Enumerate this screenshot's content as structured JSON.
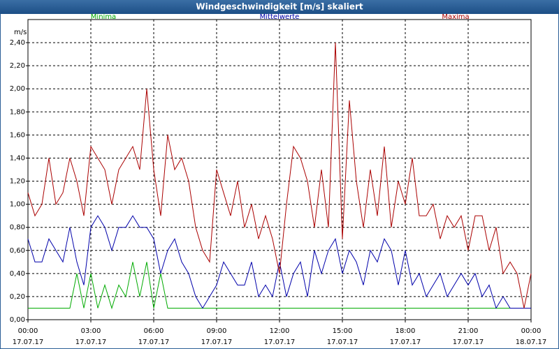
{
  "chart_data": {
    "type": "line",
    "title": "Windgeschwindigkeit [m/s] skaliert",
    "y_unit": "m/s",
    "x": [
      0,
      20,
      40,
      60,
      80,
      100,
      120,
      140,
      160,
      180,
      200,
      220,
      240,
      260,
      280,
      300,
      320,
      340,
      360,
      380,
      400,
      420,
      440,
      460,
      480,
      500,
      520,
      540,
      560,
      580,
      600,
      620,
      640,
      660,
      680,
      700,
      720,
      740,
      760,
      780,
      800,
      820,
      840,
      860,
      880,
      900,
      920,
      940,
      960,
      980,
      1000,
      1020,
      1040,
      1060,
      1080,
      1100,
      1120,
      1140,
      1160,
      1180,
      1200,
      1220,
      1240,
      1260,
      1280,
      1300,
      1320,
      1340,
      1360,
      1380,
      1400,
      1420,
      1440
    ],
    "xlim": [
      0,
      1440
    ],
    "xticks": [
      {
        "value": 0,
        "label": "00:00",
        "date": "17.07.17"
      },
      {
        "value": 180,
        "label": "03:00",
        "date": "17.07.17"
      },
      {
        "value": 360,
        "label": "06:00",
        "date": "17.07.17"
      },
      {
        "value": 540,
        "label": "09:00",
        "date": "17.07.17"
      },
      {
        "value": 720,
        "label": "12:00",
        "date": "17.07.17"
      },
      {
        "value": 900,
        "label": "15:00",
        "date": "17.07.17"
      },
      {
        "value": 1080,
        "label": "18:00",
        "date": "17.07.17"
      },
      {
        "value": 1260,
        "label": "21:00",
        "date": "17.07.17"
      },
      {
        "value": 1440,
        "label": "00:00",
        "date": "18.07.17"
      }
    ],
    "ylim": [
      0,
      2.6
    ],
    "yticks": [
      {
        "value": 0,
        "label": "0,00"
      },
      {
        "value": 0.2,
        "label": "0,20"
      },
      {
        "value": 0.4,
        "label": "0,40"
      },
      {
        "value": 0.6,
        "label": "0,60"
      },
      {
        "value": 0.8,
        "label": "0,80"
      },
      {
        "value": 1.0,
        "label": "1,00"
      },
      {
        "value": 1.2,
        "label": "1,20"
      },
      {
        "value": 1.4,
        "label": "1,40"
      },
      {
        "value": 1.6,
        "label": "1,60"
      },
      {
        "value": 1.8,
        "label": "1,80"
      },
      {
        "value": 2.0,
        "label": "2,00"
      },
      {
        "value": 2.2,
        "label": "2,20"
      },
      {
        "value": 2.4,
        "label": "2,40"
      }
    ],
    "grid": true,
    "series": [
      {
        "name": "Minima",
        "color": "#00aa00",
        "values": [
          0.1,
          0.1,
          0.1,
          0.1,
          0.1,
          0.1,
          0.1,
          0.4,
          0.1,
          0.4,
          0.1,
          0.3,
          0.1,
          0.3,
          0.2,
          0.5,
          0.2,
          0.5,
          0.1,
          0.4,
          0.1,
          0.1,
          0.1,
          0.1,
          0.1,
          0.1,
          0.1,
          0.1,
          0.1,
          0.1,
          0.1,
          0.1,
          0.1,
          0.1,
          0.1,
          0.1,
          0.1,
          0.1,
          0.1,
          0.1,
          0.1,
          0.1,
          0.1,
          0.1,
          0.1,
          0.1,
          0.1,
          0.1,
          0.1,
          0.1,
          0.1,
          0.1,
          0.1,
          0.1,
          0.1,
          0.1,
          0.1,
          0.1,
          0.1,
          0.1,
          0.1,
          0.1,
          0.1,
          0.1,
          0.1,
          0.1,
          0.1,
          0.1,
          0.1,
          0.1,
          0.1,
          0.1,
          0.1
        ]
      },
      {
        "name": "Mittelwerte",
        "color": "#0000aa",
        "values": [
          0.7,
          0.5,
          0.5,
          0.7,
          0.6,
          0.5,
          0.8,
          0.5,
          0.3,
          0.8,
          0.9,
          0.8,
          0.6,
          0.8,
          0.8,
          0.9,
          0.8,
          0.8,
          0.7,
          0.4,
          0.6,
          0.7,
          0.5,
          0.4,
          0.2,
          0.1,
          0.2,
          0.3,
          0.5,
          0.4,
          0.3,
          0.3,
          0.5,
          0.2,
          0.3,
          0.2,
          0.5,
          0.2,
          0.4,
          0.5,
          0.2,
          0.6,
          0.4,
          0.6,
          0.7,
          0.4,
          0.6,
          0.5,
          0.3,
          0.6,
          0.5,
          0.7,
          0.6,
          0.3,
          0.6,
          0.3,
          0.4,
          0.2,
          0.3,
          0.4,
          0.2,
          0.3,
          0.4,
          0.3,
          0.4,
          0.2,
          0.3,
          0.1,
          0.2,
          0.1,
          0.1,
          0.1,
          0.1
        ]
      },
      {
        "name": "Maxima",
        "color": "#aa0000",
        "values": [
          1.1,
          0.9,
          1.0,
          1.4,
          1.0,
          1.1,
          1.4,
          1.2,
          0.9,
          1.5,
          1.4,
          1.3,
          1.0,
          1.3,
          1.4,
          1.5,
          1.3,
          2.0,
          1.3,
          0.9,
          1.6,
          1.3,
          1.4,
          1.2,
          0.8,
          0.6,
          0.5,
          1.3,
          1.1,
          0.9,
          1.2,
          0.8,
          1.0,
          0.7,
          0.9,
          0.7,
          0.4,
          1.0,
          1.5,
          1.4,
          1.2,
          0.8,
          1.3,
          0.8,
          2.4,
          0.7,
          1.9,
          1.2,
          0.8,
          1.3,
          0.9,
          1.5,
          0.8,
          1.2,
          1.0,
          1.4,
          0.9,
          0.9,
          1.0,
          0.7,
          0.9,
          0.8,
          0.9,
          0.6,
          0.9,
          0.9,
          0.6,
          0.8,
          0.4,
          0.5,
          0.4,
          0.1,
          0.4
        ]
      }
    ]
  }
}
